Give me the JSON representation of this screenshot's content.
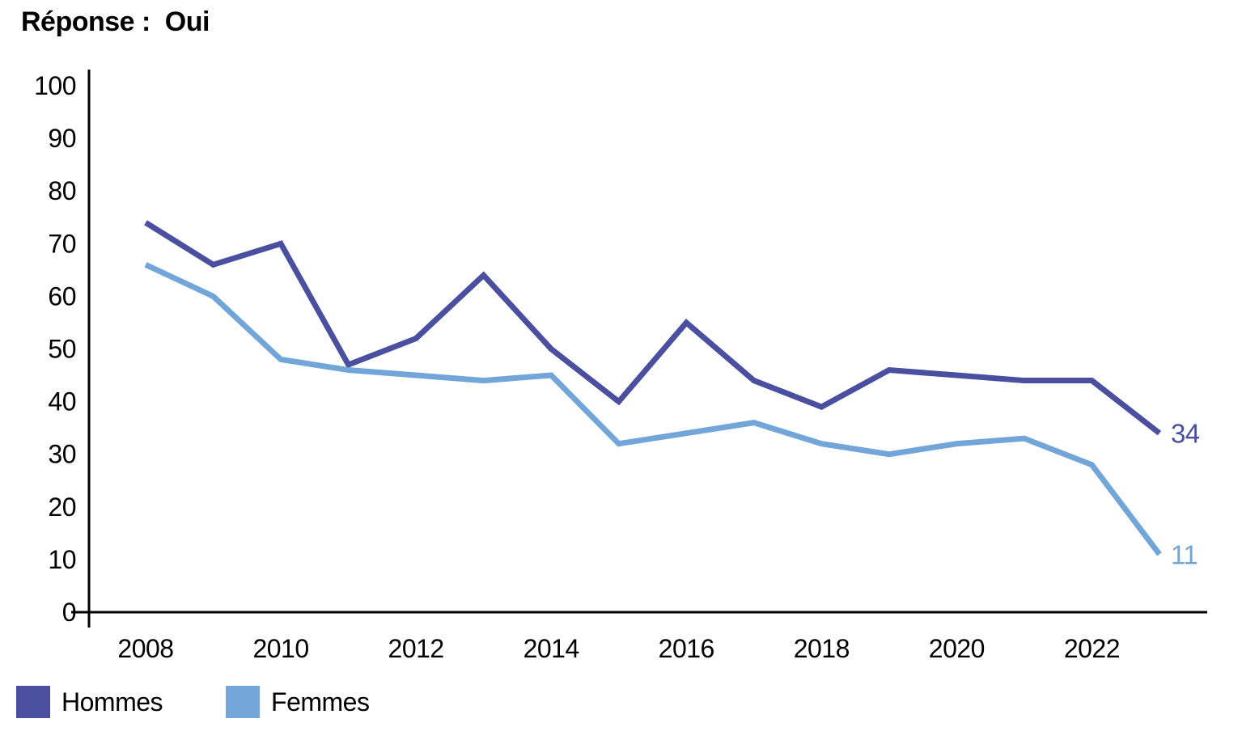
{
  "title": "Réponse :  Oui",
  "chart_data": {
    "type": "line",
    "title": "Réponse :  Oui",
    "x": [
      2008,
      2009,
      2010,
      2011,
      2012,
      2013,
      2014,
      2015,
      2016,
      2017,
      2018,
      2019,
      2020,
      2021,
      2022,
      2023
    ],
    "x_tick_labels": [
      "2008",
      "2010",
      "2012",
      "2014",
      "2016",
      "2018",
      "2020",
      "2022"
    ],
    "y_ticks": [
      0,
      10,
      20,
      30,
      40,
      50,
      60,
      70,
      80,
      90,
      100
    ],
    "ylim": [
      0,
      100
    ],
    "grid": false,
    "legend_position": "bottom-left",
    "axis_color": "#000000",
    "series": [
      {
        "name": "Hommes",
        "color": "#4A4F9F",
        "values": [
          74,
          66,
          70,
          47,
          52,
          64,
          50,
          40,
          55,
          44,
          39,
          46,
          45,
          44,
          44,
          34
        ],
        "end_label": "34"
      },
      {
        "name": "Femmes",
        "color": "#72A5D8",
        "values": [
          66,
          60,
          48,
          46,
          45,
          44,
          45,
          32,
          34,
          36,
          32,
          30,
          32,
          33,
          28,
          11
        ],
        "end_label": "11"
      }
    ]
  }
}
